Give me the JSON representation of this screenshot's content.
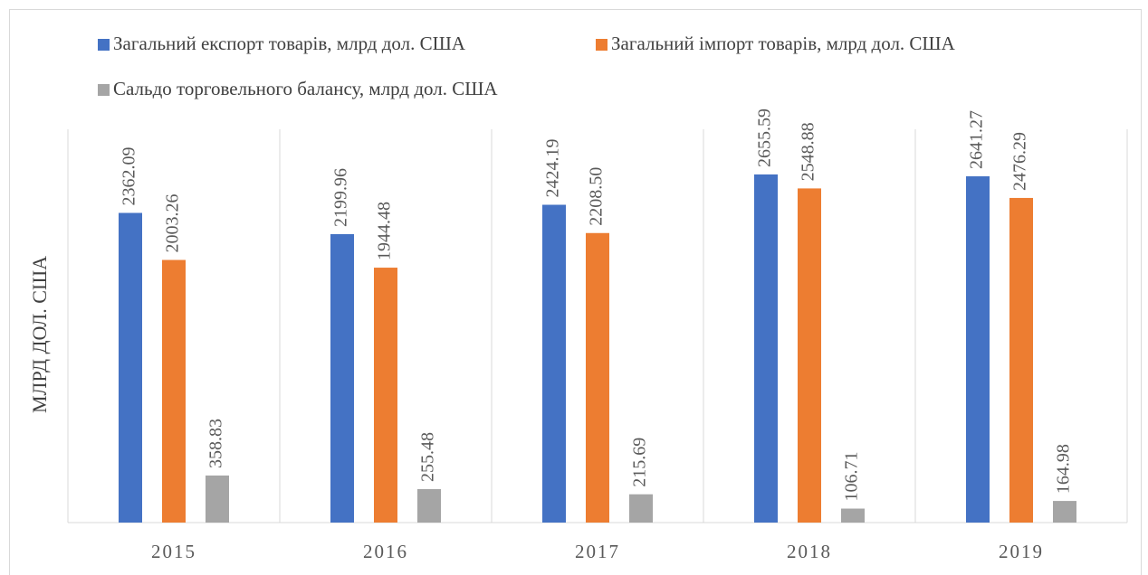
{
  "chart_data": {
    "type": "bar",
    "ylabel": "МЛРД ДОЛ. США",
    "categories": [
      "2015",
      "2016",
      "2017",
      "2018",
      "2019"
    ],
    "series": [
      {
        "name": "Загальний експорт товарів, млрд дол. США",
        "color": "#4472c4",
        "values": [
          2362.09,
          2199.96,
          2424.19,
          2655.59,
          2641.27
        ],
        "value_labels": [
          "2362.09",
          "2199.96",
          "2424.19",
          "2655.59",
          "2641.27"
        ]
      },
      {
        "name": "Загальний імпорт товарів, млрд дол. США",
        "color": "#ed7d31",
        "values": [
          2003.26,
          1944.48,
          2208.5,
          2548.88,
          2476.29
        ],
        "value_labels": [
          "2003.26",
          "1944.48",
          "2208.50",
          "2548.88",
          "2476.29"
        ]
      },
      {
        "name": "Сальдо торговельного балансу, млрд дол. США",
        "color": "#a5a5a5",
        "values": [
          358.83,
          255.48,
          215.69,
          106.71,
          164.98
        ],
        "value_labels": [
          "358.83",
          "255.48",
          "215.69",
          "106.71",
          "164.98"
        ]
      }
    ],
    "ylim": [
      0,
      3000
    ]
  }
}
